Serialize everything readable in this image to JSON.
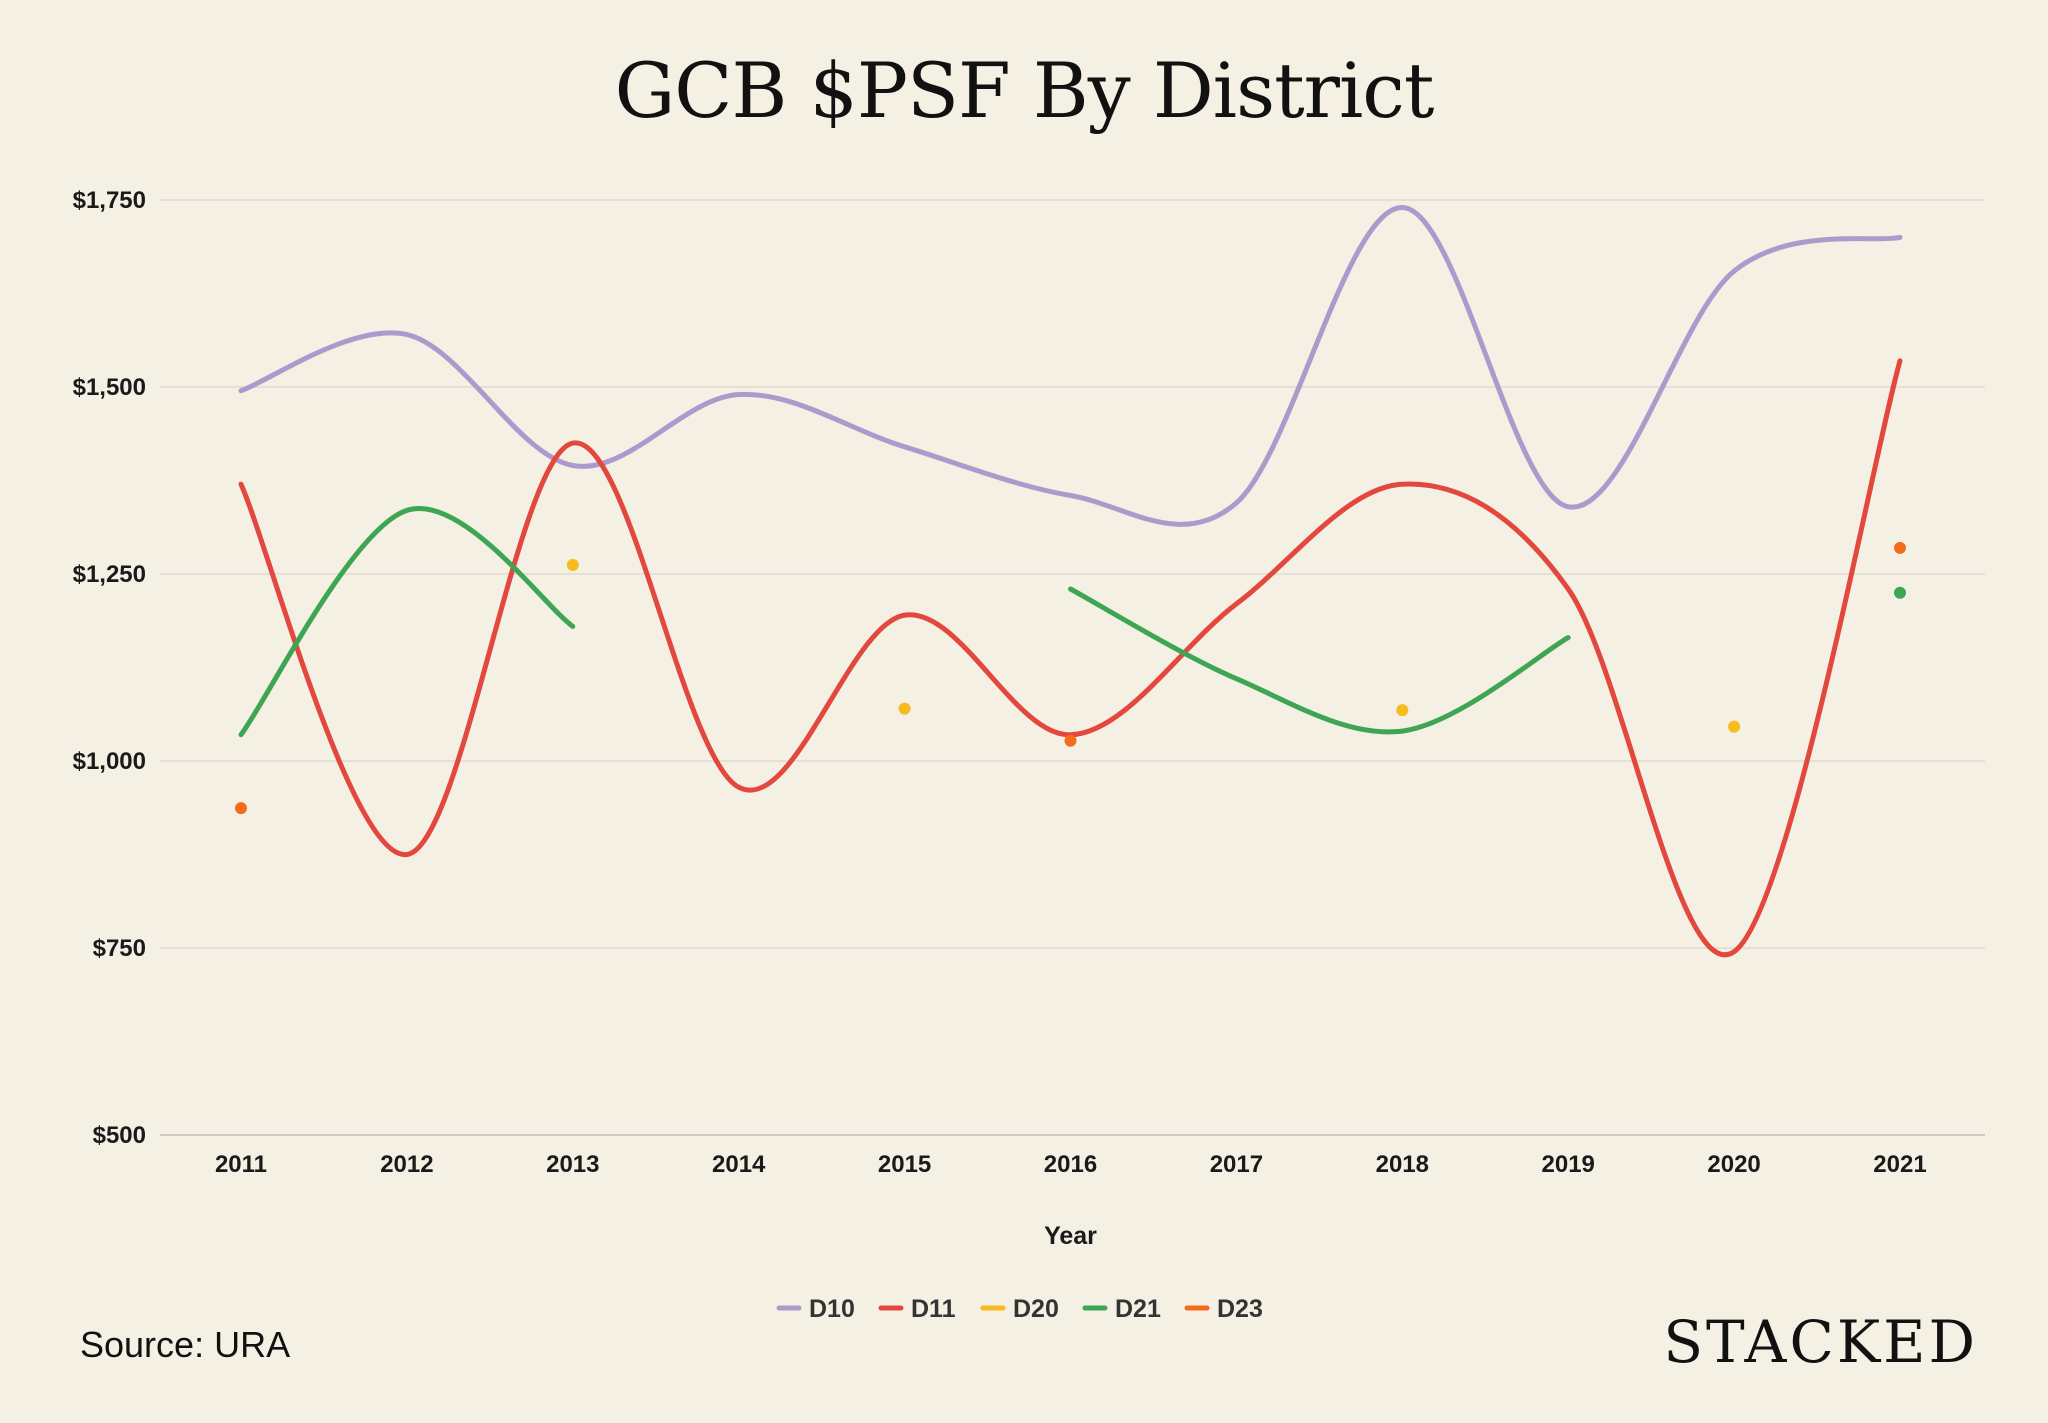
{
  "chart_data": {
    "type": "line",
    "title": "GCB $PSF By District",
    "xlabel": "Year",
    "ylabel": "",
    "categories": [
      "2011",
      "2012",
      "2013",
      "2014",
      "2015",
      "2016",
      "2017",
      "2018",
      "2019",
      "2020",
      "2021"
    ],
    "ylim": [
      500,
      1750
    ],
    "yticks": [
      500,
      750,
      1000,
      1250,
      1500,
      1750
    ],
    "ytick_labels": [
      "$500",
      "$750",
      "$1,000",
      "$1,250",
      "$1,500",
      "$1,750"
    ],
    "grid": true,
    "legend_position": "bottom",
    "series": [
      {
        "name": "D10",
        "color": "#ab9bcd",
        "values": [
          1495,
          1570,
          1395,
          1490,
          1420,
          1355,
          1345,
          1740,
          1340,
          1655,
          1700
        ]
      },
      {
        "name": "D11",
        "color": "#e2483d",
        "values": [
          1370,
          875,
          1425,
          965,
          1195,
          1035,
          1210,
          1370,
          1230,
          745,
          1535
        ]
      },
      {
        "name": "D20",
        "color": "#f7bb1e",
        "values": [
          null,
          null,
          1262,
          null,
          1070,
          null,
          null,
          1068,
          null,
          1046,
          null
        ]
      },
      {
        "name": "D21",
        "color": "#3ea553",
        "values": [
          1035,
          1335,
          1180,
          null,
          null,
          1230,
          1110,
          1040,
          1165,
          null,
          1225
        ]
      },
      {
        "name": "D23",
        "color": "#f36b1c",
        "values": [
          937,
          null,
          null,
          null,
          null,
          1027,
          null,
          null,
          null,
          null,
          1285
        ]
      }
    ]
  },
  "footer": {
    "source": "Source: URA",
    "brand": "STACKED"
  }
}
